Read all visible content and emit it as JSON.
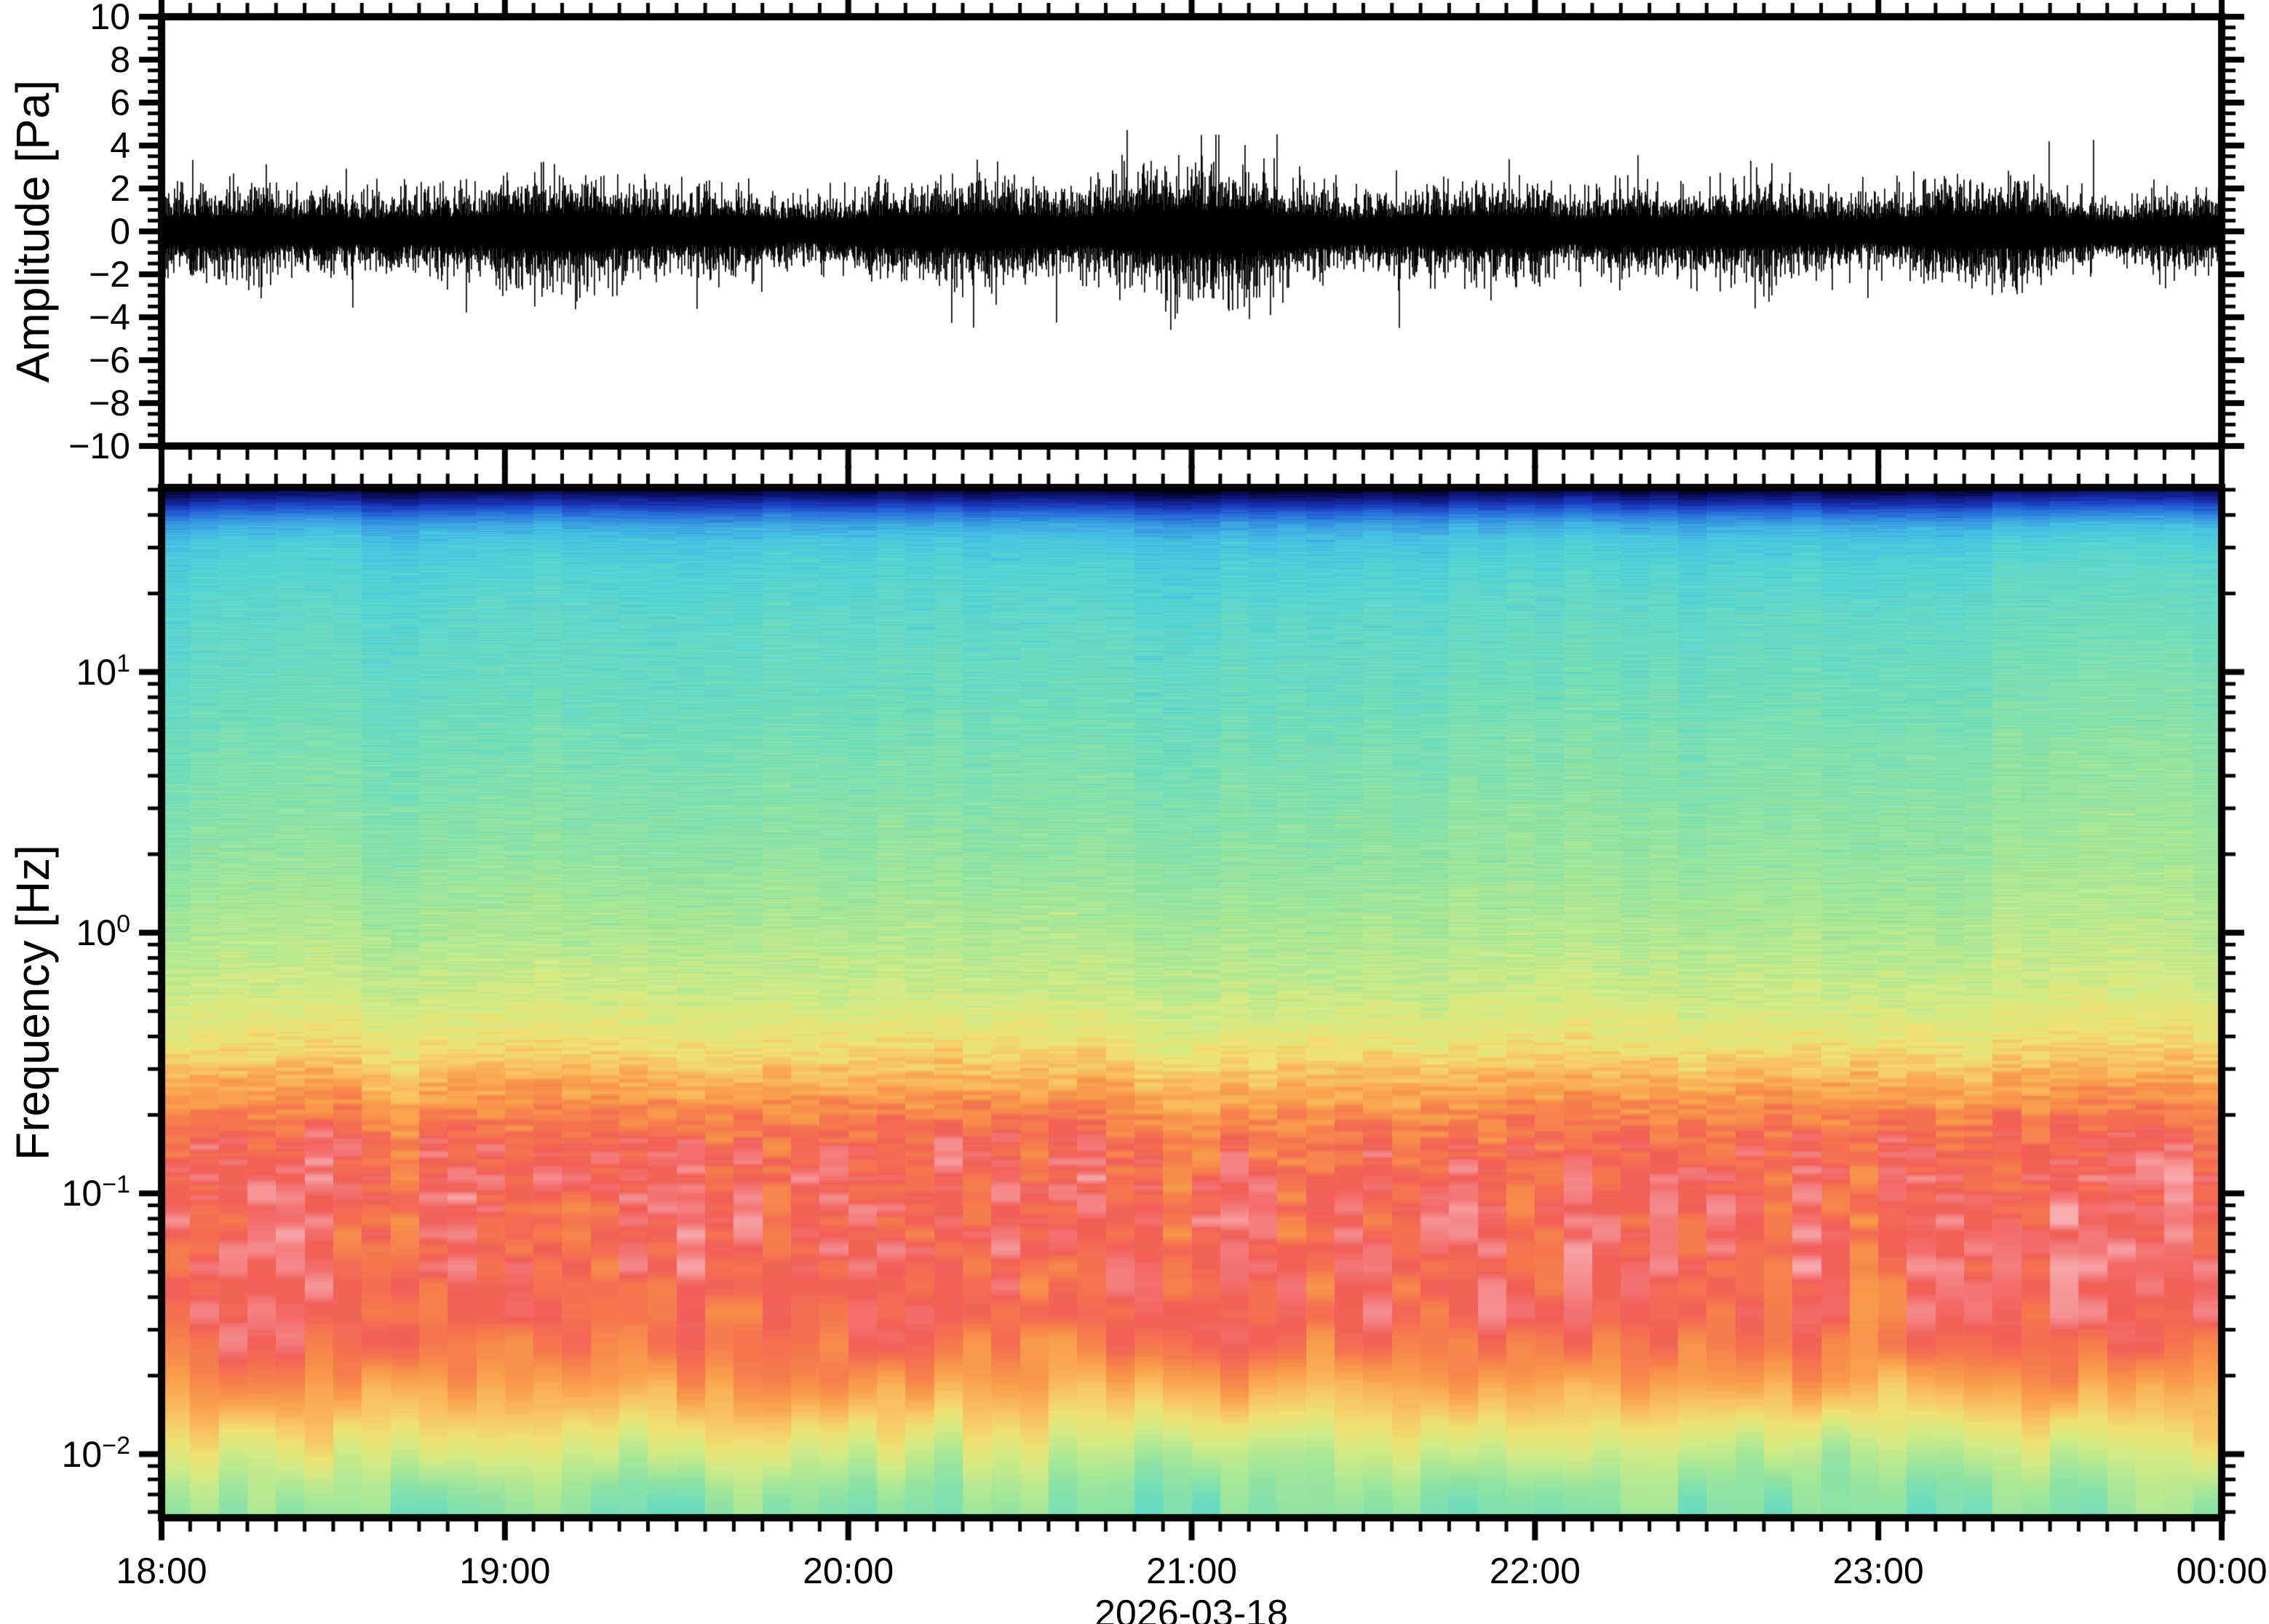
{
  "figure": {
    "background": "#ffffff",
    "frame_color": "#000000",
    "text_color": "#000000"
  },
  "top_panel": {
    "ylabel": "Amplitude [Pa]",
    "ylim": [
      -10,
      10
    ],
    "y_major_step": 2,
    "y_minor_step": 0.5,
    "y_ticks": [
      {
        "label": "10",
        "value": 10
      },
      {
        "label": "8",
        "value": 8
      },
      {
        "label": "6",
        "value": 6
      },
      {
        "label": "4",
        "value": 4
      },
      {
        "label": "2",
        "value": 2
      },
      {
        "label": "0",
        "value": 0
      },
      {
        "label": "−2",
        "value": -2
      },
      {
        "label": "−4",
        "value": -4
      },
      {
        "label": "−6",
        "value": -6
      },
      {
        "label": "−8",
        "value": -8
      },
      {
        "label": "−10",
        "value": -10
      }
    ]
  },
  "bottom_panel": {
    "ylabel": "Frequency [Hz]",
    "date_label": "2026-03-18",
    "freq_min_hz": 0.0057,
    "freq_max_hz": 51,
    "y_ticks": [
      {
        "base": "10",
        "exp": "1",
        "value": 10
      },
      {
        "base": "10",
        "exp": "0",
        "value": 1
      },
      {
        "base": "10",
        "exp": "−1",
        "value": 0.1
      },
      {
        "base": "10",
        "exp": "−2",
        "value": 0.01
      }
    ],
    "x_ticks": [
      {
        "label": "18:00",
        "hour": 0
      },
      {
        "label": "19:00",
        "hour": 1
      },
      {
        "label": "20:00",
        "hour": 2
      },
      {
        "label": "21:00",
        "hour": 3
      },
      {
        "label": "22:00",
        "hour": 4
      },
      {
        "label": "23:00",
        "hour": 5
      },
      {
        "label": "00:00",
        "hour": 6
      }
    ],
    "x_minor_step_minutes": 5
  },
  "chart_data": [
    {
      "type": "line",
      "name": "infrasound-pressure-waveform",
      "title": "",
      "xlabel": "2026-03-18",
      "ylabel": "Amplitude [Pa]",
      "x_start": "18:00",
      "x_end": "00:00",
      "ylim": [
        -10,
        10
      ],
      "color": "#000000",
      "core_halfwidth_pa": 0.7,
      "typical_peak_pa": 2.0,
      "max_spike_pa": 5.0,
      "min_spike_pa": -5.0,
      "spike_probability": 0.0045,
      "seed": 20260318
    },
    {
      "type": "heatmap",
      "name": "infrasound-spectrogram",
      "title": "",
      "xlabel": "2026-03-18",
      "ylabel": "Frequency [Hz]",
      "x_start": "18:00",
      "x_end": "00:00",
      "time_bin_minutes": 5,
      "time_bins": 72,
      "freq_min_hz": 0.0057,
      "freq_max_hz": 51,
      "log_frequency": true,
      "power_profile_logf_vs_level": [
        [
          1.71,
          0.0
        ],
        [
          1.685,
          0.03
        ],
        [
          1.66,
          0.07
        ],
        [
          1.63,
          0.12
        ],
        [
          1.6,
          0.17
        ],
        [
          1.565,
          0.22
        ],
        [
          1.5,
          0.27
        ],
        [
          1.4,
          0.3
        ],
        [
          1.2,
          0.33
        ],
        [
          0.9,
          0.36
        ],
        [
          0.6,
          0.4
        ],
        [
          0.3,
          0.44
        ],
        [
          0.0,
          0.5
        ],
        [
          -0.25,
          0.56
        ],
        [
          -0.42,
          0.63
        ],
        [
          -0.55,
          0.71
        ],
        [
          -0.68,
          0.79
        ],
        [
          -0.8,
          0.85
        ],
        [
          -0.95,
          0.875
        ],
        [
          -1.3,
          0.875
        ],
        [
          -1.5,
          0.86
        ],
        [
          -1.62,
          0.82
        ],
        [
          -1.72,
          0.77
        ],
        [
          -1.83,
          0.7
        ],
        [
          -1.93,
          0.62
        ],
        [
          -2.02,
          0.55
        ],
        [
          -2.12,
          0.48
        ],
        [
          -2.2,
          0.445
        ],
        [
          -2.25,
          0.43
        ]
      ],
      "roughness_logf_vs_amp": [
        [
          1.71,
          0.008
        ],
        [
          1.5,
          0.02
        ],
        [
          1.2,
          0.028
        ],
        [
          0.5,
          0.032
        ],
        [
          0.0,
          0.035
        ],
        [
          -0.4,
          0.04
        ],
        [
          -0.7,
          0.045
        ],
        [
          -1.0,
          0.05
        ],
        [
          -1.45,
          0.05
        ],
        [
          -1.7,
          0.045
        ],
        [
          -2.0,
          0.05
        ],
        [
          -2.25,
          0.05
        ]
      ],
      "colormap": [
        [
          0.0,
          "#000018"
        ],
        [
          0.05,
          "#0e1470"
        ],
        [
          0.1,
          "#1a32b4"
        ],
        [
          0.15,
          "#2562d8"
        ],
        [
          0.2,
          "#338fe0"
        ],
        [
          0.26,
          "#47c0e4"
        ],
        [
          0.32,
          "#58d6d2"
        ],
        [
          0.38,
          "#70ddbd"
        ],
        [
          0.44,
          "#8ce3a6"
        ],
        [
          0.5,
          "#abe896"
        ],
        [
          0.57,
          "#d3eb86"
        ],
        [
          0.64,
          "#efe273"
        ],
        [
          0.7,
          "#f9c35e"
        ],
        [
          0.76,
          "#f99f4c"
        ],
        [
          0.82,
          "#f67d4d"
        ],
        [
          0.88,
          "#f25f58"
        ],
        [
          0.93,
          "#f58a8c"
        ],
        [
          1.0,
          "#fdc9cc"
        ]
      ],
      "texture": {
        "octave2_amp": 0.055,
        "octave2_center": -1.15,
        "octave2_width": 0.45,
        "band_shift_decades": 0.07,
        "band_shift_center": -1.2,
        "band_shift_width": 0.75,
        "bottom_swing": 0.06,
        "bottom_center": -2.05,
        "bottom_width": 0.3,
        "warm_trend": 0.045,
        "warm_center": 0.8,
        "warm_width": 0.8,
        "column_jitter": 0.012,
        "column_drift": 0.02
      }
    }
  ]
}
